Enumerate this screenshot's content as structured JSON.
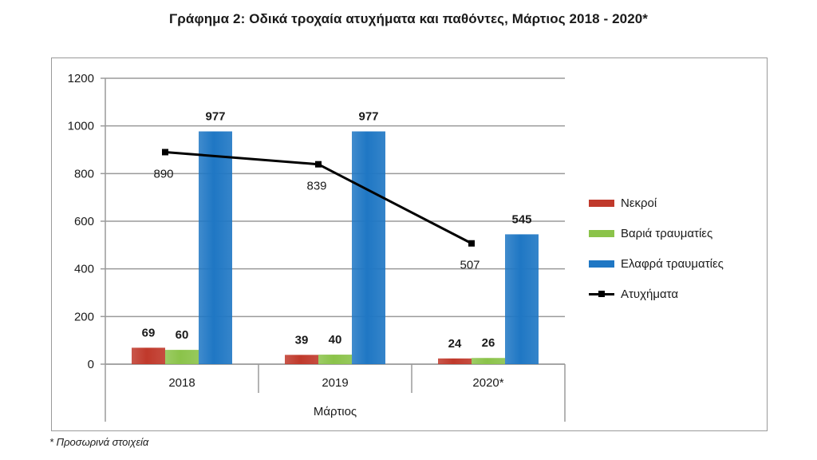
{
  "title": "Γράφημα 2: Οδικά τροχαία ατυχήματα και παθόντες, Μάρτιος 2018 - 2020*",
  "footnote": "* Προσωρινά στοιχεία",
  "chart_data": {
    "type": "bar",
    "title": "Γράφημα 2: Οδικά τροχαία ατυχήματα και παθόντες, Μάρτιος 2018 - 2020*",
    "categories": [
      "2018",
      "2019",
      "2020*"
    ],
    "xlabel": "Μάρτιος",
    "ylabel": "",
    "ylim": [
      0,
      1200
    ],
    "yticks": [
      0,
      200,
      400,
      600,
      800,
      1000,
      1200
    ],
    "grid": true,
    "legend_position": "right",
    "series": [
      {
        "name": "Νεκροί",
        "type": "bar",
        "color": "#c0392b",
        "values": [
          69,
          39,
          24
        ]
      },
      {
        "name": "Βαριά τραυματίες",
        "type": "bar",
        "color": "#8bc34a",
        "values": [
          60,
          40,
          26
        ]
      },
      {
        "name": "Ελαφρά τραυματίες",
        "type": "bar",
        "color": "#1f77c4",
        "values": [
          977,
          977,
          545
        ]
      },
      {
        "name": "Ατυχήματα",
        "type": "line",
        "color": "#000000",
        "values": [
          890,
          839,
          507
        ]
      }
    ]
  }
}
